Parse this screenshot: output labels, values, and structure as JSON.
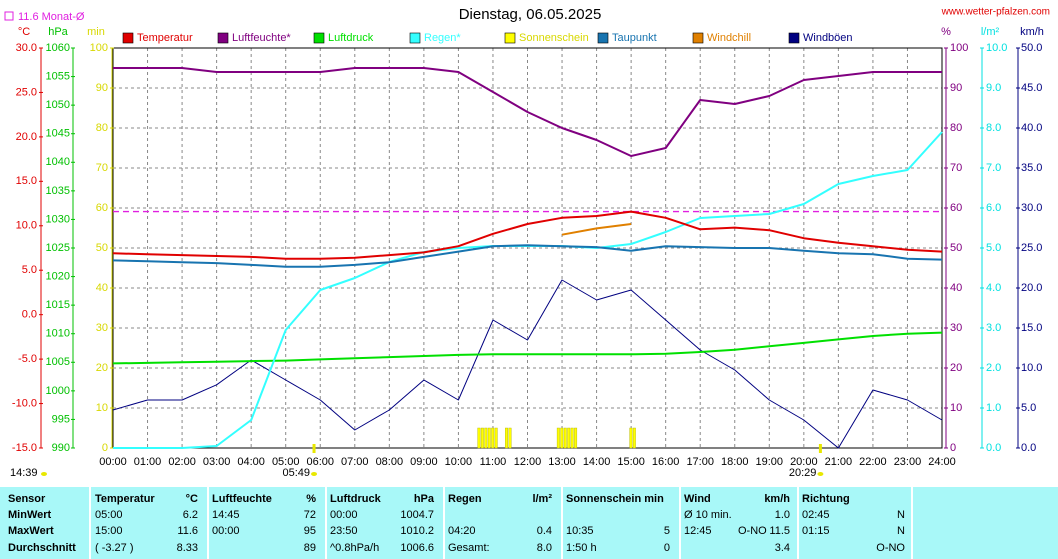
{
  "chart_data": {
    "type": "line",
    "title": "Dienstag, 06.05.2025",
    "source": "www.wetter-pfalzen.com",
    "month_mean": {
      "label": "11.6 Monat-Ø",
      "value": 11.6,
      "color": "#e020e0"
    },
    "day_length": "14:39",
    "sunrise": {
      "label": "05:49",
      "x": 5.82
    },
    "sunset": {
      "label": "20:29",
      "x": 20.48
    },
    "x": [
      0,
      1,
      2,
      3,
      4,
      5,
      6,
      7,
      8,
      9,
      10,
      11,
      12,
      13,
      14,
      15,
      16,
      17,
      18,
      19,
      20,
      21,
      22,
      23,
      24
    ],
    "xlim": [
      0,
      24
    ],
    "xticks": [
      {
        "value": 0,
        "label": "00:00"
      },
      {
        "value": 1,
        "label": "01:00"
      },
      {
        "value": 2,
        "label": "02:00"
      },
      {
        "value": 3,
        "label": "03:00"
      },
      {
        "value": 4,
        "label": "04:00"
      },
      {
        "value": 5,
        "label": "05:00"
      },
      {
        "value": 6,
        "label": "06:00"
      },
      {
        "value": 7,
        "label": "07:00"
      },
      {
        "value": 8,
        "label": "08:00"
      },
      {
        "value": 9,
        "label": "09:00"
      },
      {
        "value": 10,
        "label": "10:00"
      },
      {
        "value": 11,
        "label": "11:00"
      },
      {
        "value": 12,
        "label": "12:00"
      },
      {
        "value": 13,
        "label": "13:00"
      },
      {
        "value": 14,
        "label": "14:00"
      },
      {
        "value": 15,
        "label": "15:00"
      },
      {
        "value": 16,
        "label": "16:00"
      },
      {
        "value": 17,
        "label": "17:00"
      },
      {
        "value": 18,
        "label": "18:00"
      },
      {
        "value": 19,
        "label": "19:00"
      },
      {
        "value": 20,
        "label": "20:00"
      },
      {
        "value": 21,
        "label": "21:00"
      },
      {
        "value": 22,
        "label": "22:00"
      },
      {
        "value": 23,
        "label": "23:00"
      },
      {
        "value": 24,
        "label": "24:00"
      }
    ],
    "grid": true,
    "axes": [
      {
        "unit": "°C",
        "lim": [
          -15,
          30
        ],
        "color": "#e00000",
        "ticks": [
          {
            "value": 30,
            "label": "30.0"
          },
          {
            "value": 25,
            "label": "25.0"
          },
          {
            "value": 20,
            "label": "20.0"
          },
          {
            "value": 15,
            "label": "15.0"
          },
          {
            "value": 10,
            "label": "10.0"
          },
          {
            "value": 5,
            "label": "5.0"
          },
          {
            "value": 0,
            "label": "0.0"
          },
          {
            "value": -5,
            "label": "-5.0"
          },
          {
            "value": -10,
            "label": "-10.0"
          },
          {
            "value": -15,
            "label": "-15.0"
          }
        ]
      },
      {
        "unit": "hPa",
        "lim": [
          990,
          1060
        ],
        "color": "#00c000",
        "ticks": [
          1060,
          1055,
          1050,
          1045,
          1040,
          1035,
          1030,
          1025,
          1020,
          1015,
          1010,
          1005,
          1000,
          995,
          990
        ]
      },
      {
        "unit": "min",
        "lim": [
          0,
          100
        ],
        "color": "#d8d800",
        "ticks": [
          100,
          90,
          80,
          70,
          60,
          50,
          40,
          30,
          20,
          10,
          0
        ]
      },
      {
        "unit": "%",
        "lim": [
          0,
          100
        ],
        "color": "#800080",
        "ticks": [
          100,
          90,
          80,
          70,
          60,
          50,
          40,
          30,
          20,
          10,
          0
        ]
      },
      {
        "unit": "l/m²",
        "lim": [
          0,
          10
        ],
        "color": "#00e0e0",
        "ticks": [
          {
            "value": 10,
            "label": "10.0"
          },
          {
            "value": 9,
            "label": "9.0"
          },
          {
            "value": 8,
            "label": "8.0"
          },
          {
            "value": 7,
            "label": "7.0"
          },
          {
            "value": 6,
            "label": "6.0"
          },
          {
            "value": 5,
            "label": "5.0"
          },
          {
            "value": 4,
            "label": "4.0"
          },
          {
            "value": 3,
            "label": "3.0"
          },
          {
            "value": 2,
            "label": "2.0"
          },
          {
            "value": 1,
            "label": "1.0"
          },
          {
            "value": 0,
            "label": "0.0"
          }
        ]
      },
      {
        "unit": "km/h",
        "lim": [
          0,
          50
        ],
        "color": "#000080",
        "ticks": [
          {
            "value": 50,
            "label": "50.0"
          },
          {
            "value": 45,
            "label": "45.0"
          },
          {
            "value": 40,
            "label": "40.0"
          },
          {
            "value": 35,
            "label": "35.0"
          },
          {
            "value": 30,
            "label": "30.0"
          },
          {
            "value": 25,
            "label": "25.0"
          },
          {
            "value": 20,
            "label": "20.0"
          },
          {
            "value": 15,
            "label": "15.0"
          },
          {
            "value": 10,
            "label": "10.0"
          },
          {
            "value": 5,
            "label": "5.0"
          },
          {
            "value": 0,
            "label": "0.0"
          }
        ]
      }
    ],
    "series": [
      {
        "name": "Temperatur",
        "color": "#e00000",
        "axis": 0,
        "values": [
          6.9,
          6.8,
          6.7,
          6.6,
          6.5,
          6.3,
          6.3,
          6.4,
          6.7,
          7.0,
          7.7,
          9.1,
          10.2,
          10.9,
          11.1,
          11.6,
          10.9,
          9.6,
          9.8,
          9.5,
          8.6,
          8.1,
          7.7,
          7.3,
          7.1
        ]
      },
      {
        "name": "Luftfeuchte*",
        "color": "#800080",
        "axis": 3,
        "values": [
          95,
          95,
          95,
          94,
          94,
          94,
          94,
          95,
          95,
          95,
          94,
          89,
          84,
          80,
          77,
          73,
          75,
          87,
          86,
          88,
          92,
          93,
          94,
          94,
          94
        ]
      },
      {
        "name": "Luftdruck",
        "color": "#00e000",
        "axis": 1,
        "values": [
          1004.8,
          1004.9,
          1005.0,
          1005.1,
          1005.2,
          1005.3,
          1005.5,
          1005.7,
          1005.9,
          1006.1,
          1006.3,
          1006.4,
          1006.4,
          1006.4,
          1006.4,
          1006.4,
          1006.5,
          1006.8,
          1007.2,
          1007.8,
          1008.4,
          1009.0,
          1009.6,
          1010.0,
          1010.2
        ]
      },
      {
        "name": "Regen*",
        "color": "#33ffff",
        "axis": 4,
        "values": [
          0,
          0,
          0,
          0.05,
          0.7,
          2.95,
          3.95,
          4.25,
          4.65,
          4.9,
          5.0,
          5.05,
          5.05,
          5.05,
          5.0,
          5.1,
          5.4,
          5.75,
          5.8,
          5.85,
          6.1,
          6.6,
          6.8,
          6.95,
          7.9
        ]
      },
      {
        "name": "Sonnenschein",
        "color": "#ffff00",
        "axis": 2,
        "mark": "bar",
        "x": [
          10.6,
          10.7,
          10.8,
          10.9,
          11.0,
          11.1,
          11.4,
          11.5,
          12.9,
          13.0,
          13.1,
          13.2,
          13.3,
          13.4,
          15.0,
          15.1
        ],
        "values": [
          5,
          5,
          5,
          5,
          5,
          5,
          5,
          5,
          5,
          5,
          5,
          5,
          5,
          5,
          5,
          5
        ]
      },
      {
        "name": "Taupunkt",
        "color": "#1874b0",
        "axis": 0,
        "values": [
          6.1,
          6.0,
          5.9,
          5.8,
          5.6,
          5.4,
          5.4,
          5.6,
          5.9,
          6.5,
          7.1,
          7.7,
          7.8,
          7.7,
          7.6,
          7.2,
          7.7,
          7.6,
          7.5,
          7.5,
          7.2,
          6.9,
          6.8,
          6.3,
          6.2
        ]
      },
      {
        "name": "Windchill",
        "color": "#e08000",
        "axis": 0,
        "values": [
          null,
          null,
          null,
          null,
          null,
          null,
          null,
          null,
          null,
          null,
          null,
          null,
          null,
          9.0,
          9.7,
          10.2,
          null,
          null,
          null,
          null,
          null,
          null,
          null,
          null,
          null
        ]
      },
      {
        "name": "Windböen",
        "color": "#000080",
        "axis": 5,
        "values": [
          4.75,
          6,
          6,
          7.9,
          11,
          8.5,
          6,
          2.25,
          4.75,
          8.5,
          6,
          16,
          13.5,
          21,
          18.5,
          19.75,
          16,
          12.25,
          9.75,
          6,
          3.5,
          0,
          7.25,
          6,
          3.5
        ]
      }
    ]
  },
  "table": {
    "rows": [
      [
        "Sensor",
        "Temperatur",
        "°C",
        "Luftfeuchte",
        "%",
        "Luftdruck",
        "hPa",
        "Regen",
        "l/m²",
        "Sonnenschein min",
        null,
        "Wind",
        null,
        "km/h",
        "Richtung",
        null
      ],
      [
        "MinWert",
        "05:00",
        "6.2",
        "14:45",
        "72",
        "00:00",
        "1004.7",
        null,
        null,
        null,
        null,
        "Ø 10 min.",
        null,
        "1.0",
        "02:45",
        "N"
      ],
      [
        "MaxWert",
        "15:00",
        "11.6",
        "00:00",
        "95",
        "23:50",
        "1010.2",
        "04:20",
        "0.4",
        "10:35",
        "5",
        "12:45",
        "O-NO",
        "11.5",
        "01:15",
        "N"
      ],
      [
        "Durchschnitt",
        "( -3.27 )",
        "8.33",
        null,
        "89",
        "^0.8hPa/h",
        "1006.6",
        "Gesamt:",
        "8.0",
        "1:50 h",
        "0",
        null,
        null,
        "3.4",
        null,
        "O-NO"
      ]
    ]
  }
}
